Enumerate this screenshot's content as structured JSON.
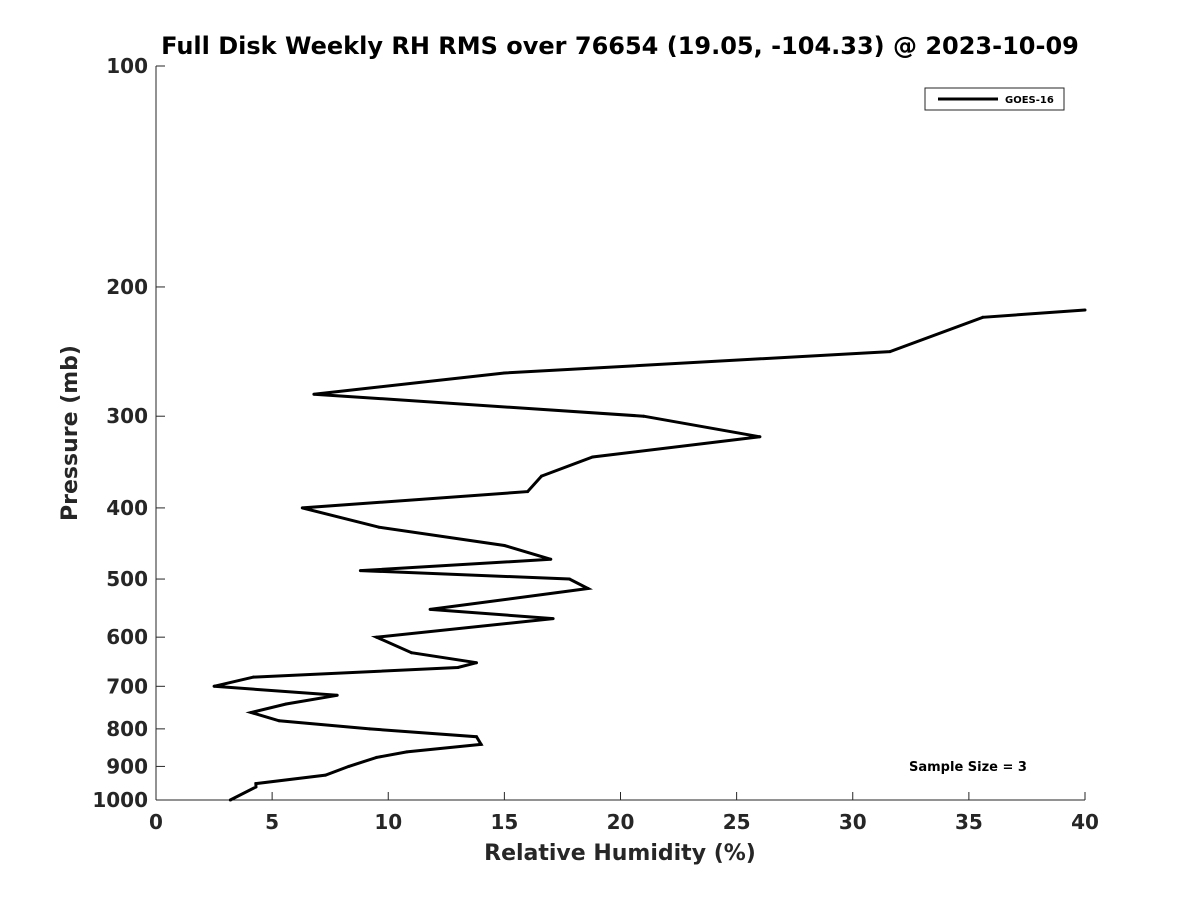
{
  "chart_data": {
    "type": "line",
    "title": "Full Disk Weekly RH RMS over 76654 (19.05, -104.33) @ 2023-10-09",
    "xlabel": "Relative Humidity (%)",
    "ylabel": "Pressure (mb)",
    "xlim": [
      0,
      40
    ],
    "ylim": [
      100,
      1000
    ],
    "yscale": "log",
    "y_reversed": true,
    "grid": false,
    "legend_position": "top-right",
    "x_ticks": [
      "0",
      "5",
      "10",
      "15",
      "20",
      "25",
      "30",
      "35",
      "40"
    ],
    "y_ticks": [
      "100",
      "200",
      "300",
      "400",
      "500",
      "600",
      "700",
      "800",
      "900",
      "1000"
    ],
    "annotation": "Sample Size = 3",
    "series": [
      {
        "name": "GOES-16",
        "color": "#000000",
        "points": [
          [
            40.0,
            215
          ],
          [
            35.6,
            220
          ],
          [
            31.6,
            245
          ],
          [
            15.0,
            262
          ],
          [
            6.8,
            280
          ],
          [
            21.0,
            300
          ],
          [
            26.0,
            320
          ],
          [
            18.8,
            341
          ],
          [
            16.6,
            362
          ],
          [
            16.0,
            380
          ],
          [
            6.3,
            400
          ],
          [
            9.6,
            425
          ],
          [
            15.0,
            450
          ],
          [
            17.0,
            470
          ],
          [
            8.8,
            487
          ],
          [
            17.8,
            500
          ],
          [
            18.6,
            515
          ],
          [
            11.8,
            550
          ],
          [
            17.1,
            566
          ],
          [
            9.5,
            600
          ],
          [
            11.0,
            630
          ],
          [
            13.8,
            650
          ],
          [
            13.0,
            660
          ],
          [
            4.2,
            680
          ],
          [
            2.5,
            700
          ],
          [
            7.8,
            720
          ],
          [
            5.6,
            740
          ],
          [
            4.1,
            760
          ],
          [
            5.3,
            780
          ],
          [
            9.2,
            800
          ],
          [
            13.8,
            820
          ],
          [
            14.0,
            840
          ],
          [
            10.8,
            860
          ],
          [
            9.5,
            875
          ],
          [
            8.3,
            900
          ],
          [
            7.3,
            925
          ],
          [
            4.3,
            950
          ],
          [
            4.3,
            960
          ],
          [
            3.2,
            1000
          ]
        ]
      }
    ]
  }
}
